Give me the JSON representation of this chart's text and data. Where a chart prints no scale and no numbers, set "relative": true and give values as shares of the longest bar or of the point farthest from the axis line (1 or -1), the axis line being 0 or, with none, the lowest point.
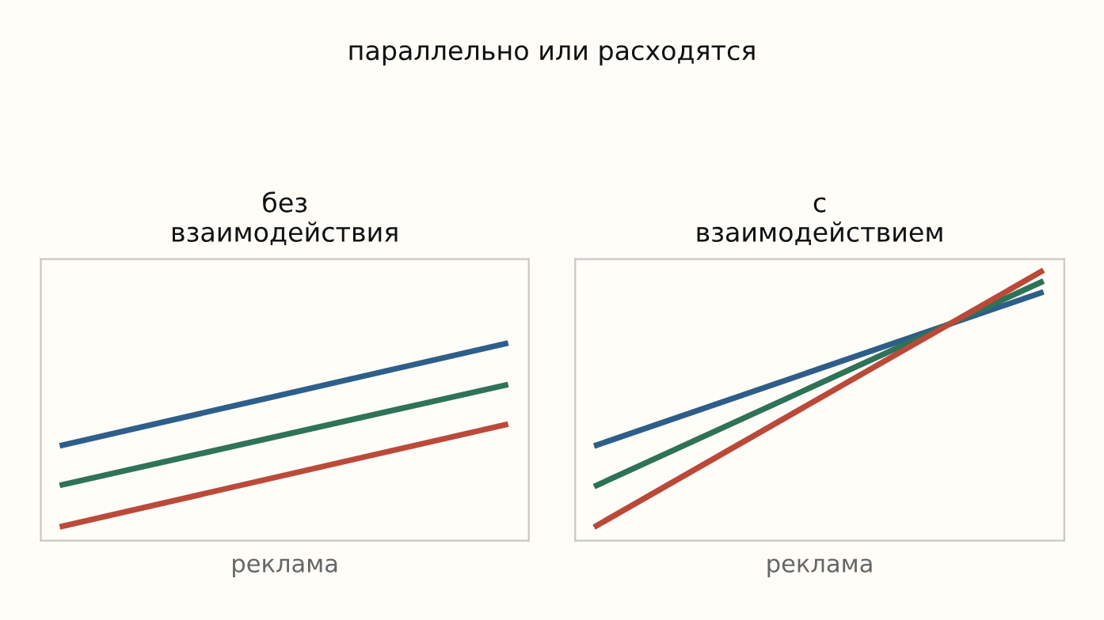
{
  "chart_data": [
    {
      "type": "line",
      "title": "без\nвзаимодействия",
      "annotations": [
        "параллельно или расходятся"
      ],
      "xlabel": "реклама",
      "categories": [
        null,
        null
      ],
      "relative": true,
      "marker": "none",
      "line_style": "solid",
      "series": [
        {
          "color": "#2e5f8a",
          "values": [
            0.48,
            1.0
          ]
        },
        {
          "color": "#2f7358",
          "values": [
            0.28,
            0.79
          ]
        },
        {
          "color": "#bb4a3a",
          "values": [
            0.07,
            0.59
          ]
        }
      ]
    },
    {
      "type": "line",
      "title": "с\nвзаимодействием",
      "xlabel": "реклама",
      "categories": [
        null,
        null
      ],
      "relative": true,
      "marker": "none",
      "line_style": "solid",
      "series": [
        {
          "color": "#2d5e89",
          "values": [
            0.35,
            0.92
          ]
        },
        {
          "color": "#2e7257",
          "values": [
            0.2,
            0.96
          ]
        },
        {
          "color": "#ba493a",
          "values": [
            0.05,
            1.0
          ]
        }
      ]
    }
  ]
}
